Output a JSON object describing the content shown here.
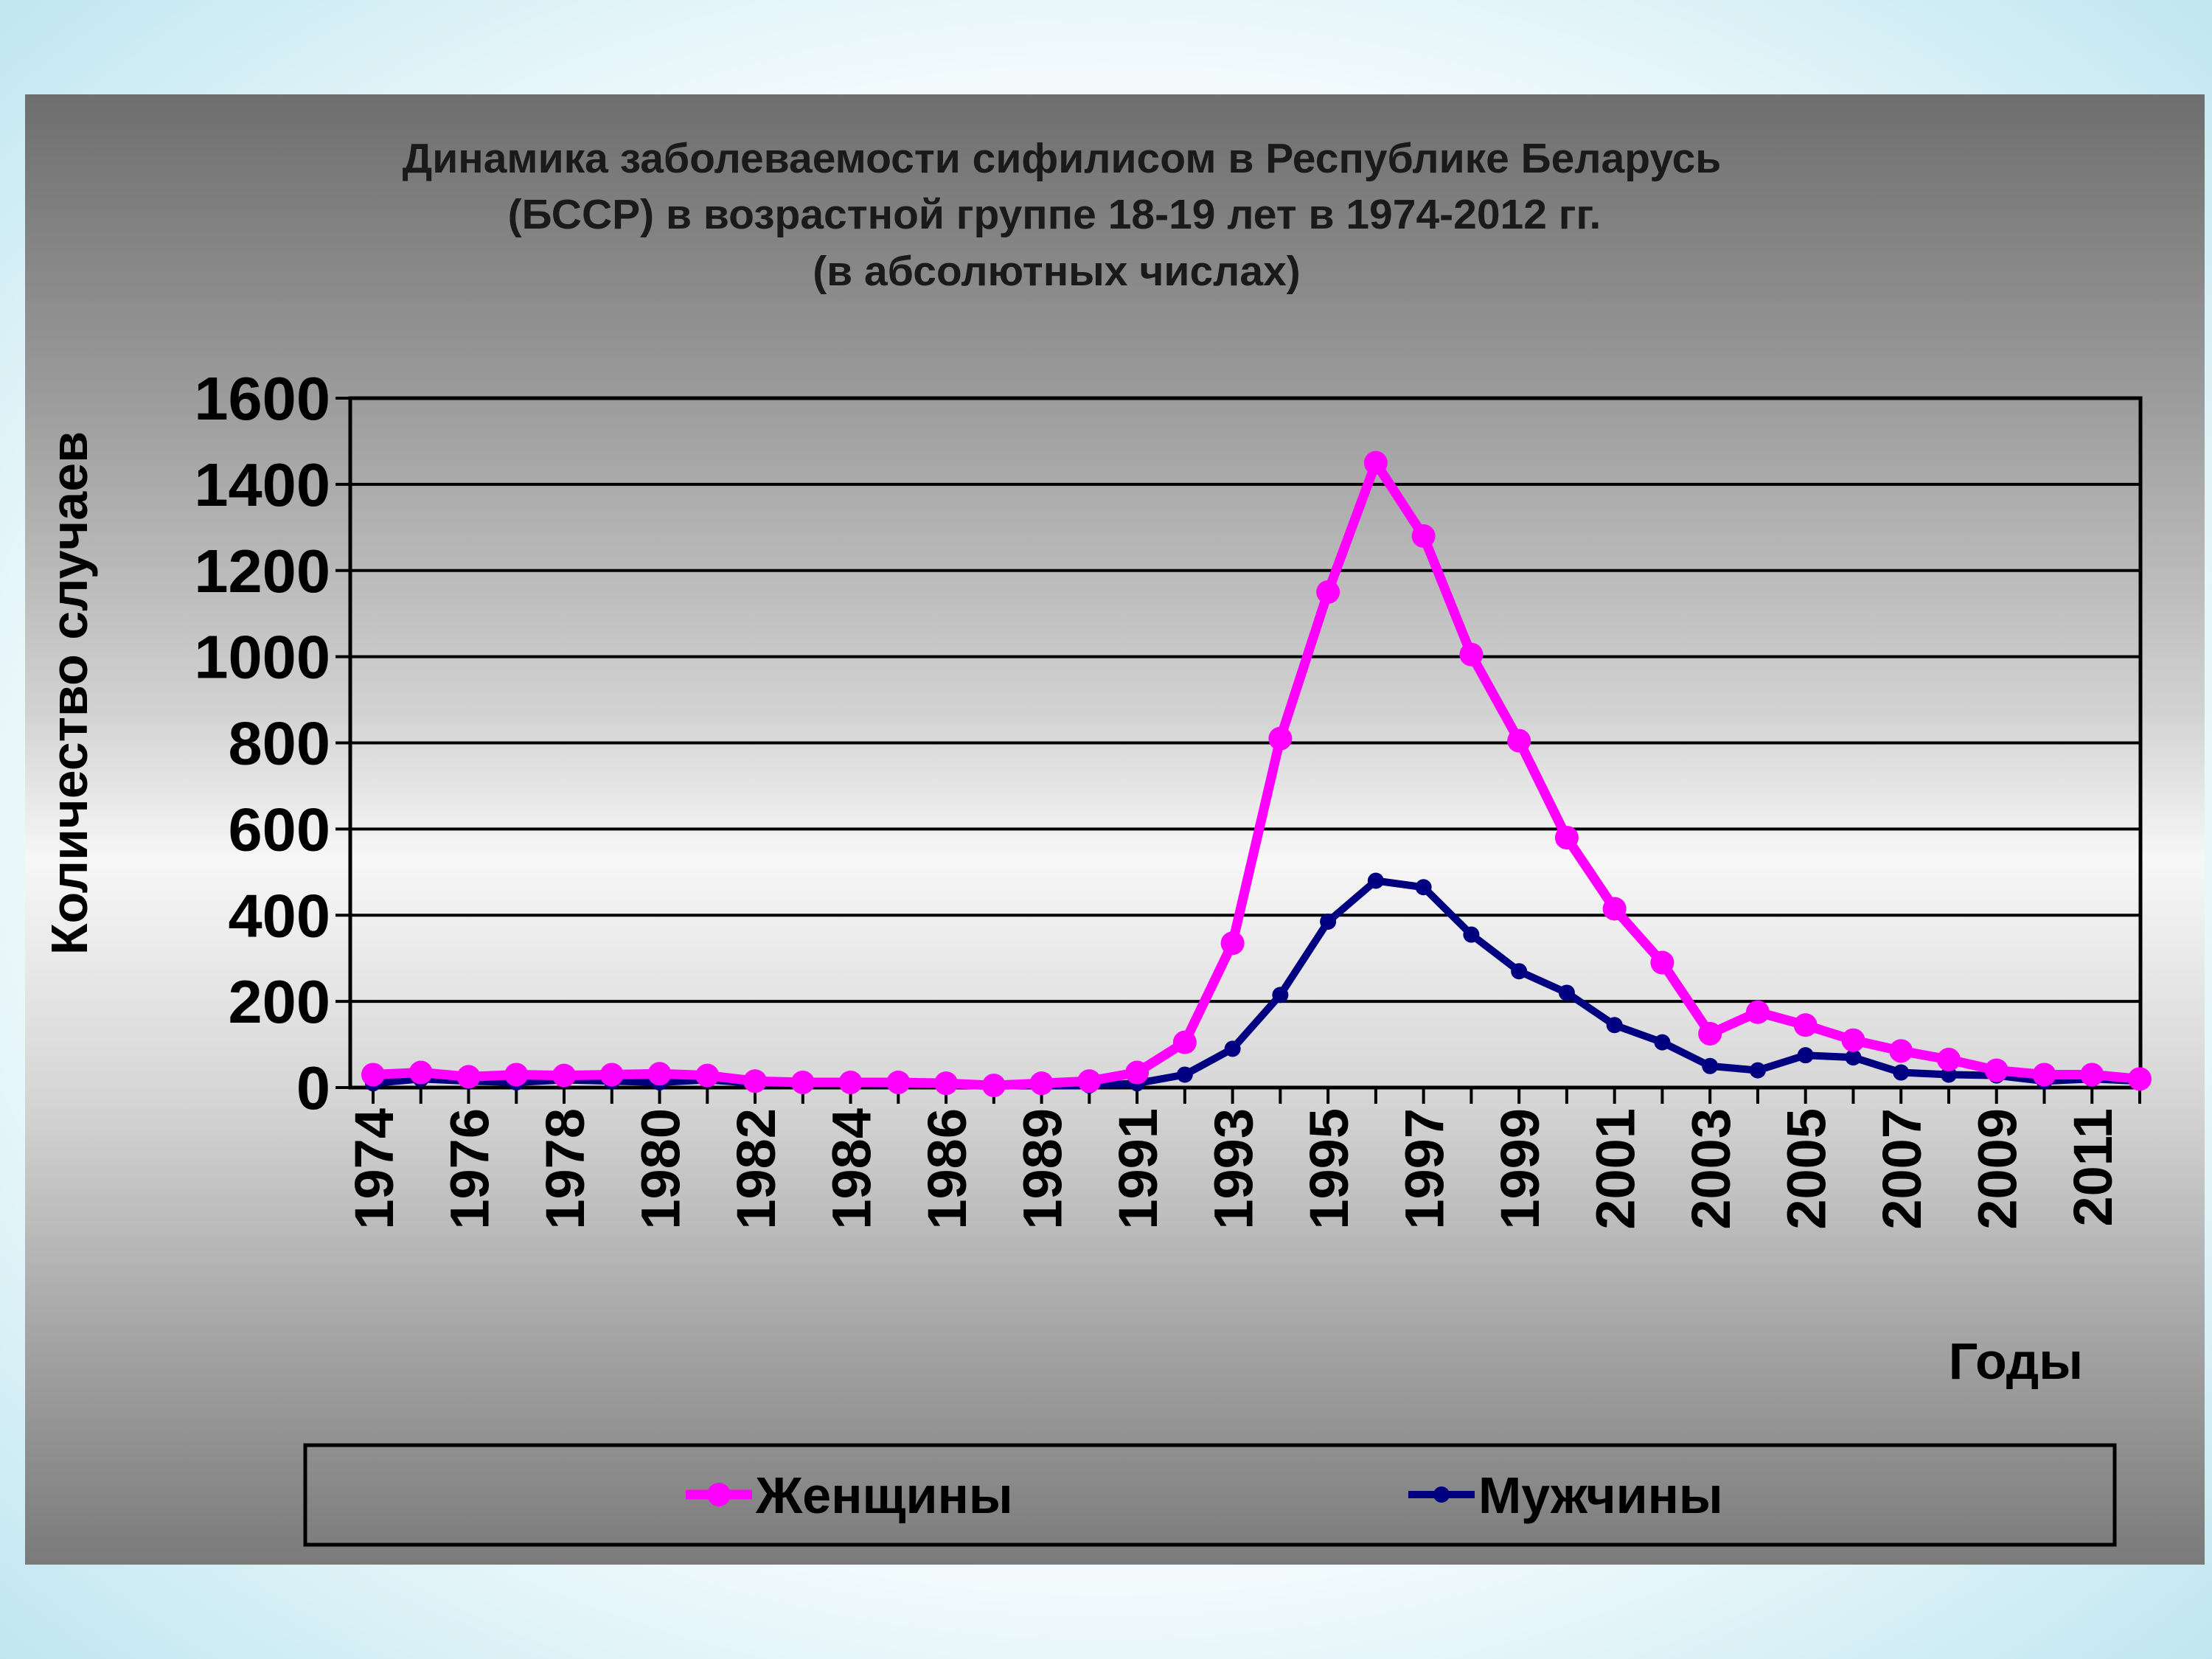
{
  "chart_data": {
    "type": "line",
    "title": [
      "Динамика заболеваемости сифилисом в Республике Беларусь",
      "(БССР) в возрастной группе 18-19 лет в 1974-2012 гг.",
      "(в абсолютных числах)"
    ],
    "xlabel": "Годы",
    "ylabel": "Количество случаев",
    "ylim": [
      0,
      1600
    ],
    "yticks": [
      "0",
      "200",
      "400",
      "600",
      "800",
      "1000",
      "1200",
      "1400",
      "1600"
    ],
    "xtick_labels": [
      "1974",
      "1976",
      "1978",
      "1980",
      "1982",
      "1984",
      "1986",
      "1989",
      "1991",
      "1993",
      "1995",
      "1997",
      "1999",
      "2001",
      "2003",
      "2005",
      "2007",
      "2009",
      "2011"
    ],
    "grid": "horizontal",
    "legend_position": "bottom",
    "series": [
      {
        "name": "Женщины",
        "color": "#ff00ff",
        "values": [
          30,
          35,
          25,
          30,
          28,
          30,
          32,
          28,
          15,
          12,
          12,
          12,
          10,
          5,
          10,
          15,
          35,
          105,
          335,
          810,
          1150,
          1450,
          1280,
          1005,
          805,
          580,
          415,
          290,
          125,
          175,
          145,
          110,
          85,
          65,
          40,
          30,
          30,
          20
        ]
      },
      {
        "name": "Мужчины",
        "color": "#000080",
        "values": [
          10,
          20,
          15,
          12,
          18,
          15,
          12,
          18,
          10,
          10,
          10,
          8,
          8,
          5,
          5,
          5,
          10,
          30,
          90,
          215,
          385,
          480,
          465,
          355,
          270,
          220,
          145,
          105,
          50,
          40,
          75,
          70,
          35,
          30,
          28,
          15,
          20,
          15
        ]
      }
    ]
  }
}
